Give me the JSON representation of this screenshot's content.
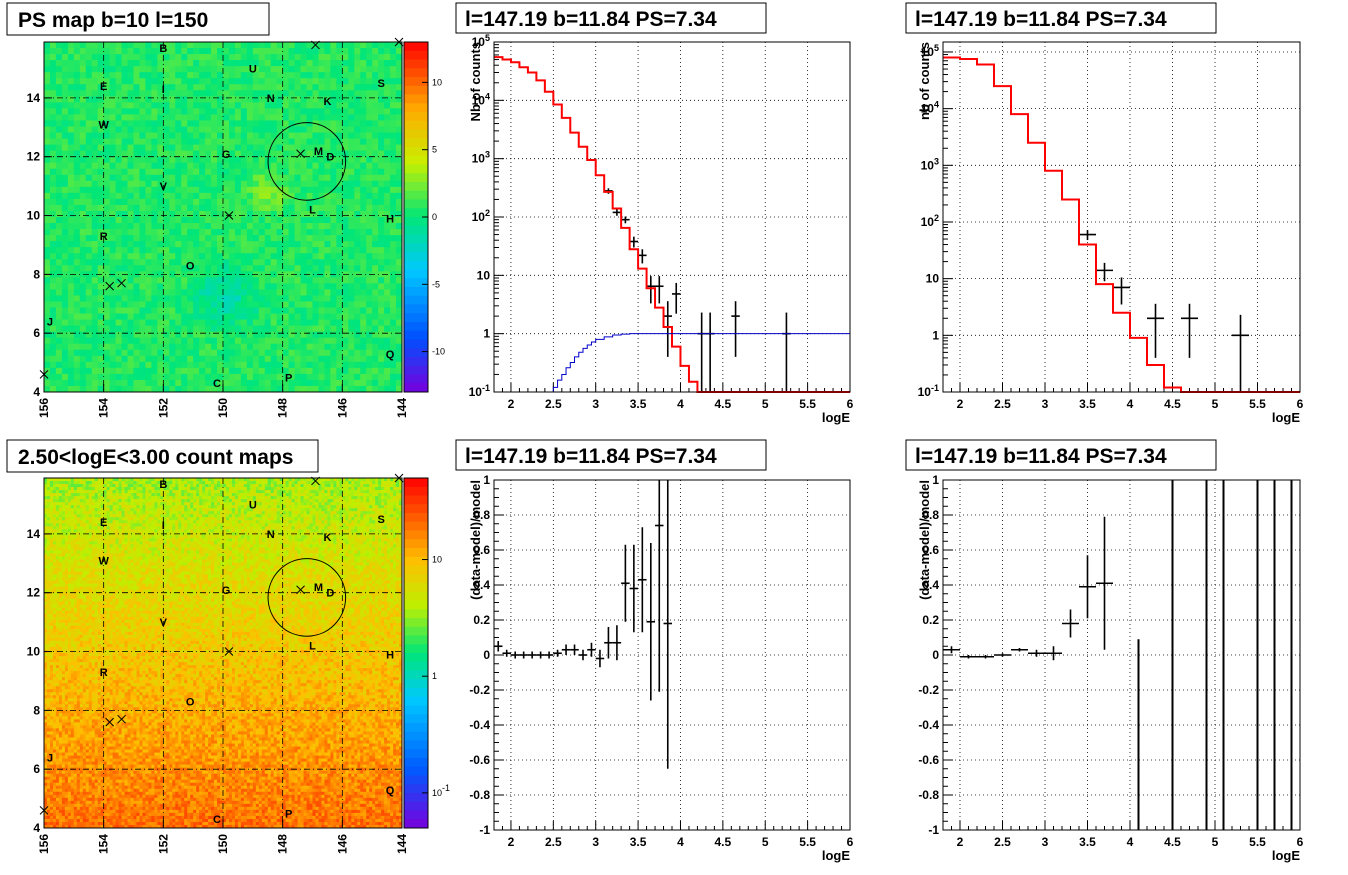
{
  "window": {
    "title": "PS map b=10 l=150"
  },
  "panels": [
    {
      "id": "ps-map",
      "title": "PS map b=10 l=150"
    },
    {
      "id": "spectrum-all",
      "title": "l=147.19 b=11.84 PS=7.34"
    },
    {
      "id": "spectrum-grouped",
      "title": "l=147.19 b=11.84 PS=7.34"
    },
    {
      "id": "count-map",
      "title": "2.50<logE<3.00 count maps"
    },
    {
      "id": "residual-all",
      "title": "l=147.19 b=11.84 PS=7.34"
    },
    {
      "id": "residual-grouped",
      "title": "l=147.19 b=11.84 PS=7.34"
    }
  ],
  "colors": {
    "data": "#000000",
    "model": "#ff0000",
    "efficiency": "#0000cc",
    "grid": "#000000"
  },
  "chart_data": [
    {
      "type": "heatmap",
      "title": "PS map b=10 l=150",
      "xlabel": "",
      "ylabel": "",
      "xlim": [
        156,
        144
      ],
      "ylim": [
        4,
        15.9
      ],
      "xticks": [
        "156",
        "154",
        "152",
        "150",
        "148",
        "146",
        "144"
      ],
      "yticks": [
        "4",
        "6",
        "8",
        "10",
        "12",
        "14"
      ],
      "colorbar": {
        "ticks": [
          "10",
          "5",
          "0",
          "-5",
          "-10"
        ],
        "range": [
          -13,
          13
        ],
        "scale": "linear"
      },
      "sources": [
        {
          "label": "B",
          "l": 152.0,
          "b": 15.7
        },
        {
          "label": "U",
          "l": 149.0,
          "b": 15.0
        },
        {
          "label": "E",
          "l": 154.0,
          "b": 14.4
        },
        {
          "label": "I",
          "l": 152.0,
          "b": 14.3
        },
        {
          "label": "N",
          "l": 148.4,
          "b": 14.0
        },
        {
          "label": "K",
          "l": 146.5,
          "b": 13.9
        },
        {
          "label": "S",
          "l": 144.7,
          "b": 14.5
        },
        {
          "label": "W",
          "l": 154.0,
          "b": 13.1
        },
        {
          "label": "G",
          "l": 149.9,
          "b": 12.1
        },
        {
          "label": "M",
          "l": 146.8,
          "b": 12.2
        },
        {
          "label": "D",
          "l": 146.4,
          "b": 12.0
        },
        {
          "label": "V",
          "l": 152.0,
          "b": 11.0
        },
        {
          "label": "L",
          "l": 147.0,
          "b": 10.2
        },
        {
          "label": "H",
          "l": 144.4,
          "b": 9.9
        },
        {
          "label": "R",
          "l": 154.0,
          "b": 9.3
        },
        {
          "label": "O",
          "l": 151.1,
          "b": 8.3
        },
        {
          "label": "J",
          "l": 155.8,
          "b": 6.4
        },
        {
          "label": "Q",
          "l": 144.4,
          "b": 5.3
        },
        {
          "label": "C",
          "l": 150.2,
          "b": 4.3
        },
        {
          "label": "P",
          "l": 147.8,
          "b": 4.5
        }
      ],
      "crosses": [
        {
          "l": 146.9,
          "b": 15.8
        },
        {
          "l": 144.1,
          "b": 15.9
        },
        {
          "l": 149.8,
          "b": 10.0
        },
        {
          "l": 153.8,
          "b": 7.6
        },
        {
          "l": 153.4,
          "b": 7.7
        },
        {
          "l": 147.4,
          "b": 12.1
        },
        {
          "l": 156.0,
          "b": 4.6
        }
      ],
      "circle": {
        "l": 147.19,
        "b": 11.84,
        "r": 0.5
      }
    },
    {
      "type": "line",
      "title": "l=147.19 b=11.84 PS=7.34",
      "xlabel": "logE",
      "ylabel": "Nb of counts",
      "xlim": [
        1.8,
        6
      ],
      "ylim": [
        0.1,
        100000
      ],
      "yscale": "log",
      "xticks": [
        "2",
        "2.5",
        "3",
        "3.5",
        "4",
        "4.5",
        "5",
        "5.5",
        "6"
      ],
      "yticks": [
        "10^-1",
        "1",
        "10",
        "10^2",
        "10^3",
        "10^4",
        "10^5"
      ],
      "grid": true,
      "series": [
        {
          "role": "data",
          "points": [
            [
              3.15,
              280,
              0.05,
              30
            ],
            [
              3.25,
              120,
              0.05,
              15
            ],
            [
              3.35,
              90,
              0.05,
              12
            ],
            [
              3.45,
              38,
              0.05,
              8
            ],
            [
              3.55,
              22,
              0.05,
              6
            ],
            [
              3.65,
              6.5,
              0.05,
              3.2
            ],
            [
              3.75,
              6.5,
              0.05,
              3.2
            ],
            [
              3.85,
              2,
              0.05,
              1.6
            ],
            [
              3.95,
              4.8,
              0.05,
              2.6
            ],
            [
              4.25,
              1,
              0.05,
              1.3
            ],
            [
              4.35,
              1,
              0.05,
              1.3
            ],
            [
              4.65,
              2,
              0.05,
              1.6
            ],
            [
              5.25,
              1,
              0.05,
              1.3
            ]
          ]
        },
        {
          "role": "model",
          "edges": [
            1.8,
            1.9,
            2.0,
            2.1,
            2.2,
            2.3,
            2.4,
            2.5,
            2.6,
            2.7,
            2.8,
            2.9,
            3.0,
            3.1,
            3.2,
            3.3,
            3.4,
            3.5,
            3.6,
            3.7,
            3.8,
            3.9,
            4.0,
            4.1,
            4.2,
            4.3,
            6.0
          ],
          "values": [
            55000,
            50000,
            45000,
            37000,
            30000,
            22000,
            14000,
            8500,
            5000,
            2800,
            1600,
            950,
            520,
            270,
            140,
            65,
            28,
            13,
            6,
            2.8,
            1.3,
            0.6,
            0.28,
            0.15,
            0.1,
            0.1
          ]
        },
        {
          "role": "efficiency",
          "edges": [
            1.8,
            2.5,
            2.55,
            2.6,
            2.65,
            2.7,
            2.75,
            2.8,
            2.85,
            2.9,
            2.95,
            3.0,
            3.1,
            3.2,
            3.3,
            3.4,
            3.6,
            6.0
          ],
          "values": [
            0.1,
            0.12,
            0.16,
            0.2,
            0.26,
            0.32,
            0.4,
            0.48,
            0.56,
            0.64,
            0.72,
            0.8,
            0.88,
            0.95,
            0.98,
            1.0,
            1.0
          ]
        }
      ]
    },
    {
      "type": "line",
      "title": "l=147.19 b=11.84 PS=7.34",
      "xlabel": "logE",
      "ylabel": "nb of counts",
      "xlim": [
        1.8,
        6
      ],
      "ylim": [
        0.1,
        150000
      ],
      "yscale": "log",
      "xticks": [
        "2",
        "2.5",
        "3",
        "3.5",
        "4",
        "4.5",
        "5",
        "5.5",
        "6"
      ],
      "yticks": [
        "10^-1",
        "1",
        "10",
        "10^2",
        "10^3",
        "10^4",
        "10^5"
      ],
      "grid": true,
      "series": [
        {
          "role": "data",
          "points": [
            [
              3.5,
              60,
              0.1,
              12
            ],
            [
              3.7,
              14,
              0.1,
              5
            ],
            [
              3.9,
              7,
              0.1,
              3.5
            ],
            [
              4.3,
              2,
              0.1,
              1.6
            ],
            [
              4.7,
              2,
              0.1,
              1.6
            ],
            [
              5.3,
              1,
              0.1,
              1.3
            ]
          ]
        },
        {
          "role": "model",
          "edges": [
            1.8,
            2.0,
            2.2,
            2.4,
            2.6,
            2.8,
            3.0,
            3.2,
            3.4,
            3.6,
            3.8,
            4.0,
            4.2,
            4.4,
            4.6,
            6.0
          ],
          "values": [
            80000,
            75000,
            60000,
            25000,
            8000,
            2500,
            800,
            250,
            40,
            8,
            2.5,
            0.9,
            0.3,
            0.12,
            0.1
          ]
        }
      ]
    },
    {
      "type": "heatmap",
      "title": "2.50<logE<3.00 count maps",
      "xlabel": "",
      "ylabel": "",
      "xlim": [
        156,
        144
      ],
      "ylim": [
        4,
        15.9
      ],
      "xticks": [
        "156",
        "154",
        "152",
        "150",
        "148",
        "146",
        "144"
      ],
      "yticks": [
        "4",
        "6",
        "8",
        "10",
        "12",
        "14"
      ],
      "colorbar": {
        "ticks": [
          "10",
          "1",
          "10^-1"
        ],
        "range": [
          0.05,
          50
        ],
        "scale": "log"
      },
      "sources_ref": 0
    },
    {
      "type": "scatter",
      "title": "l=147.19 b=11.84 PS=7.34",
      "xlabel": "logE",
      "ylabel": "(data-model)/model",
      "xlim": [
        1.8,
        6
      ],
      "ylim": [
        -1,
        1
      ],
      "xticks": [
        "2",
        "2.5",
        "3",
        "3.5",
        "4",
        "4.5",
        "5",
        "5.5",
        "6"
      ],
      "yticks": [
        "1",
        "0.8",
        "0.6",
        "0.4",
        "0.2",
        "0",
        "-0.2",
        "-0.4",
        "-0.6",
        "-0.8",
        "-1"
      ],
      "grid": true,
      "series": [
        {
          "role": "residual",
          "points": [
            [
              1.85,
              0.05,
              0.05,
              0.03
            ],
            [
              1.95,
              0.01,
              0.05,
              0.02
            ],
            [
              2.05,
              0.0,
              0.05,
              0.02
            ],
            [
              2.15,
              0.0,
              0.05,
              0.02
            ],
            [
              2.25,
              0.0,
              0.05,
              0.02
            ],
            [
              2.35,
              0.0,
              0.05,
              0.02
            ],
            [
              2.45,
              0.0,
              0.05,
              0.02
            ],
            [
              2.55,
              0.01,
              0.05,
              0.02
            ],
            [
              2.65,
              0.03,
              0.05,
              0.03
            ],
            [
              2.75,
              0.03,
              0.05,
              0.03
            ],
            [
              2.85,
              0.0,
              0.05,
              0.03
            ],
            [
              2.95,
              0.03,
              0.05,
              0.04
            ],
            [
              3.05,
              -0.02,
              0.05,
              0.05
            ],
            [
              3.15,
              0.07,
              0.05,
              0.09
            ],
            [
              3.25,
              0.07,
              0.05,
              0.1
            ],
            [
              3.35,
              0.41,
              0.05,
              0.22
            ],
            [
              3.45,
              0.38,
              0.05,
              0.25
            ],
            [
              3.55,
              0.43,
              0.05,
              0.3
            ],
            [
              3.65,
              0.19,
              0.05,
              0.45
            ],
            [
              3.75,
              0.74,
              0.05,
              0.95
            ],
            [
              3.85,
              0.18,
              0.05,
              0.83
            ]
          ]
        }
      ]
    },
    {
      "type": "scatter",
      "title": "l=147.19 b=11.84 PS=7.34",
      "xlabel": "logE",
      "ylabel": "(data-model)/model",
      "xlim": [
        1.8,
        6
      ],
      "ylim": [
        -1,
        1
      ],
      "xticks": [
        "2",
        "2.5",
        "3",
        "3.5",
        "4",
        "4.5",
        "5",
        "5.5",
        "6"
      ],
      "yticks": [
        "1",
        "0.8",
        "0.6",
        "0.4",
        "0.2",
        "0",
        "-0.2",
        "-0.4",
        "-0.6",
        "-0.8",
        "-1"
      ],
      "grid": true,
      "series": [
        {
          "role": "residual",
          "points": [
            [
              1.9,
              0.03,
              0.1,
              0.02
            ],
            [
              2.1,
              -0.01,
              0.1,
              0.01
            ],
            [
              2.3,
              -0.01,
              0.1,
              0.01
            ],
            [
              2.5,
              0.0,
              0.1,
              0.01
            ],
            [
              2.7,
              0.03,
              0.1,
              0.01
            ],
            [
              2.9,
              0.01,
              0.1,
              0.02
            ],
            [
              3.1,
              0.01,
              0.1,
              0.04
            ],
            [
              3.3,
              0.18,
              0.1,
              0.08
            ],
            [
              3.5,
              0.39,
              0.1,
              0.18
            ],
            [
              3.7,
              0.41,
              0.1,
              0.38
            ]
          ]
        },
        {
          "role": "residual-lines",
          "x": [
            4.1,
            4.5,
            4.9,
            5.1,
            5.5,
            5.7,
            5.9
          ],
          "ylo": [
            -1,
            -1,
            -1,
            -1,
            -1,
            -1,
            -1
          ],
          "yhi": [
            0.09,
            1,
            1,
            1,
            1,
            1,
            1
          ]
        }
      ]
    }
  ]
}
